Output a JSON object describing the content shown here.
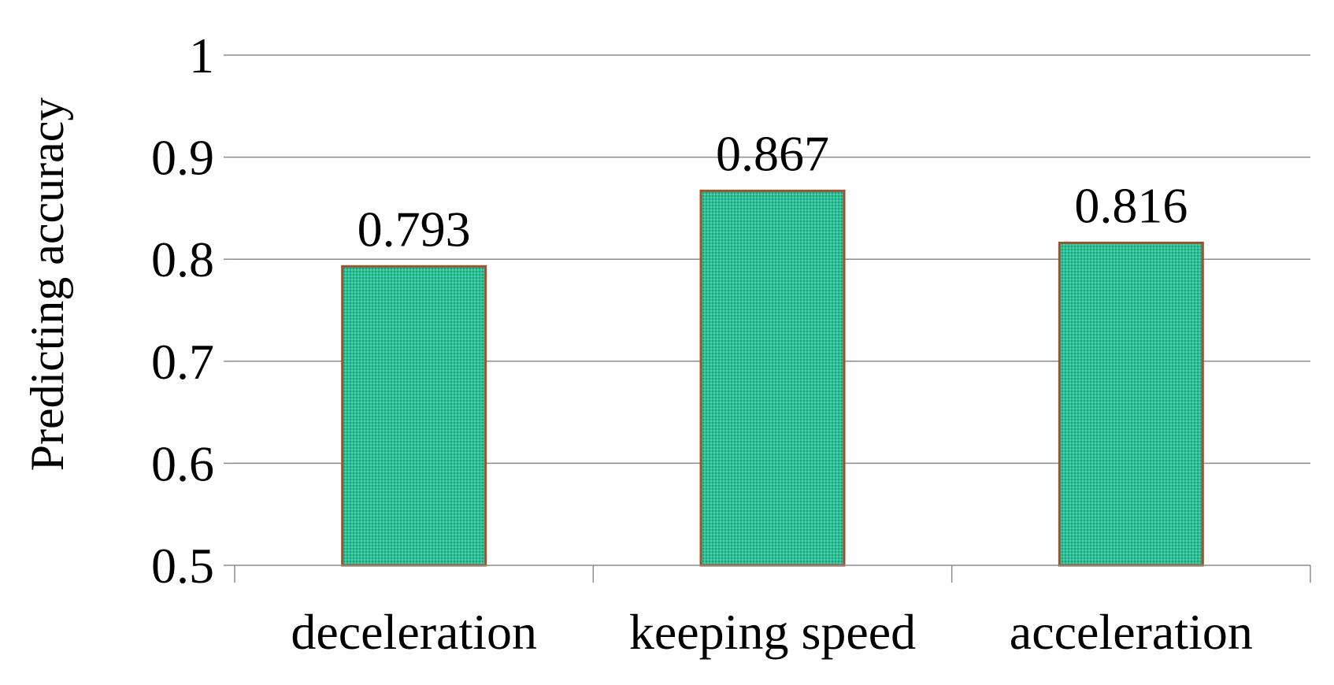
{
  "chart_data": {
    "type": "bar",
    "categories": [
      "deceleration",
      "keeping speed",
      "acceleration"
    ],
    "values": [
      0.793,
      0.867,
      0.816
    ],
    "data_labels": [
      "0.793",
      "0.867",
      "0.816"
    ],
    "title": "",
    "xlabel": "",
    "ylabel": "Predicting accuracy",
    "ylim": [
      0.5,
      1
    ],
    "yticks": [
      0.5,
      0.6,
      0.7,
      0.8,
      0.9,
      1
    ],
    "ytick_labels": [
      "0.5",
      "0.6",
      "0.7",
      "0.8",
      "0.9",
      "1"
    ],
    "grid": true,
    "legend": "none",
    "bar_fill_color": "#2dbf96",
    "bar_edge_color": "#a0522d",
    "bar_pattern": "fine-dotted"
  }
}
